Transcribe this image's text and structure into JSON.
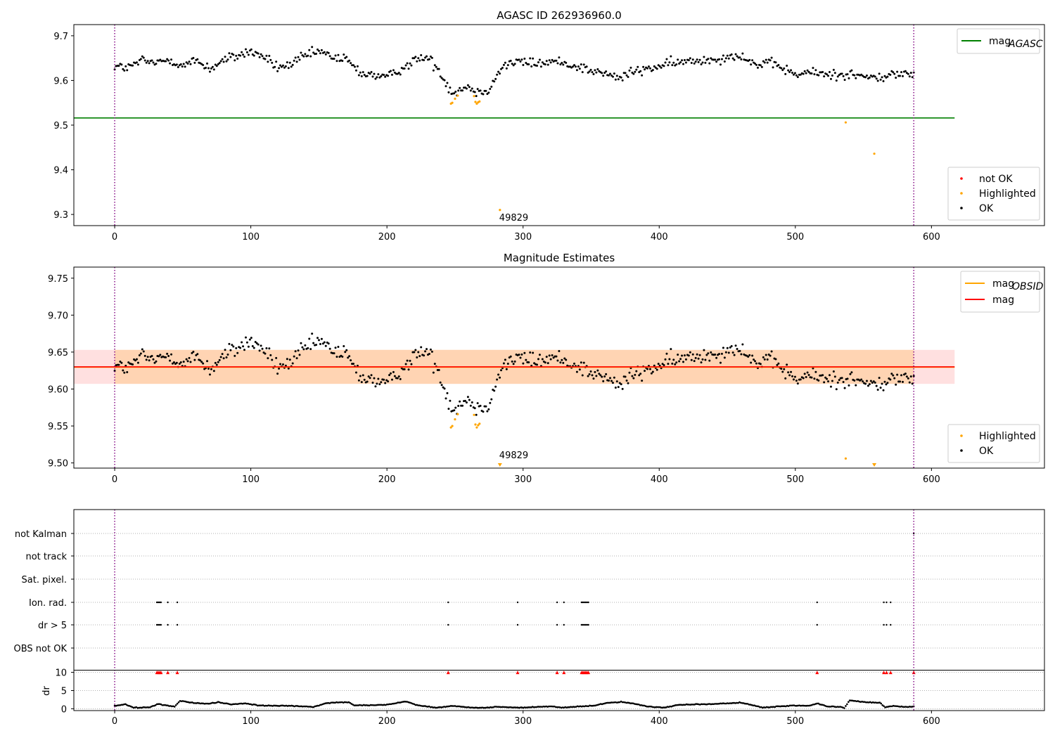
{
  "chart_data": [
    {
      "type": "scatter",
      "title": "AGASC ID 262936960.0",
      "xlim": [
        -30,
        683
      ],
      "ylim": [
        9.275,
        9.725
      ],
      "x_ticks": [
        0,
        100,
        200,
        300,
        400,
        500,
        600
      ],
      "y_ticks": [
        9.3,
        9.4,
        9.5,
        9.6,
        9.7
      ],
      "y_tick_labels": [
        "9.3",
        "9.4",
        "9.5",
        "9.6",
        "9.7"
      ],
      "vlines": [
        0,
        587
      ],
      "hlines": [
        {
          "name": "mag_AGASC",
          "y": 9.516,
          "x_range": [
            -30,
            617
          ],
          "color": "#008000"
        }
      ],
      "legend_lines": [
        {
          "label": "mag",
          "sub": "AGASC",
          "color": "#008000"
        }
      ],
      "legend_points": [
        {
          "label": "not OK",
          "color": "#ff0000"
        },
        {
          "label": "Highlighted",
          "color": "#ffa500"
        },
        {
          "label": "OK",
          "color": "#000000"
        }
      ],
      "annotation": {
        "text": "49829",
        "x": 283,
        "y": 9.292
      },
      "series": [
        {
          "name": "OK",
          "color": "#000000",
          "trend": [
            [
              0,
              9.632
            ],
            [
              10,
              9.628
            ],
            [
              20,
              9.645
            ],
            [
              30,
              9.638
            ],
            [
              40,
              9.648
            ],
            [
              50,
              9.632
            ],
            [
              60,
              9.645
            ],
            [
              70,
              9.626
            ],
            [
              80,
              9.645
            ],
            [
              90,
              9.655
            ],
            [
              100,
              9.665
            ],
            [
              110,
              9.652
            ],
            [
              120,
              9.628
            ],
            [
              130,
              9.636
            ],
            [
              140,
              9.655
            ],
            [
              150,
              9.665
            ],
            [
              160,
              9.652
            ],
            [
              170,
              9.647
            ],
            [
              180,
              9.618
            ],
            [
              190,
              9.612
            ],
            [
              200,
              9.606
            ],
            [
              210,
              9.625
            ],
            [
              220,
              9.645
            ],
            [
              230,
              9.652
            ],
            [
              240,
              9.615
            ],
            [
              245,
              9.585
            ],
            [
              250,
              9.572
            ],
            [
              258,
              9.588
            ],
            [
              268,
              9.572
            ],
            [
              275,
              9.582
            ],
            [
              285,
              9.632
            ],
            [
              295,
              9.642
            ],
            [
              310,
              9.638
            ],
            [
              325,
              9.642
            ],
            [
              340,
              9.632
            ],
            [
              350,
              9.622
            ],
            [
              360,
              9.615
            ],
            [
              370,
              9.605
            ],
            [
              380,
              9.618
            ],
            [
              390,
              9.625
            ],
            [
              400,
              9.632
            ],
            [
              410,
              9.638
            ],
            [
              420,
              9.642
            ],
            [
              430,
              9.645
            ],
            [
              440,
              9.648
            ],
            [
              450,
              9.652
            ],
            [
              460,
              9.658
            ],
            [
              470,
              9.635
            ],
            [
              480,
              9.638
            ],
            [
              490,
              9.63
            ],
            [
              500,
              9.612
            ],
            [
              510,
              9.618
            ],
            [
              520,
              9.615
            ],
            [
              530,
              9.612
            ],
            [
              540,
              9.615
            ],
            [
              550,
              9.608
            ],
            [
              560,
              9.605
            ],
            [
              570,
              9.612
            ],
            [
              580,
              9.615
            ],
            [
              587,
              9.615
            ]
          ],
          "count": 580,
          "noise": 0.022
        },
        {
          "name": "Highlighted",
          "color": "#ffa500",
          "points": [
            [
              247,
              9.548
            ],
            [
              248,
              9.55
            ],
            [
              250,
              9.559
            ],
            [
              252,
              9.566
            ],
            [
              264,
              9.565
            ],
            [
              265,
              9.552
            ],
            [
              266,
              9.548
            ],
            [
              267,
              9.551
            ],
            [
              268,
              9.553
            ],
            [
              283,
              9.31
            ],
            [
              537,
              9.506
            ],
            [
              558,
              9.436
            ]
          ]
        }
      ]
    },
    {
      "type": "scatter",
      "title": "Magnitude Estimates",
      "xlim": [
        -30,
        683
      ],
      "ylim": [
        9.493,
        9.765
      ],
      "x_ticks": [
        0,
        100,
        200,
        300,
        400,
        500,
        600
      ],
      "y_ticks": [
        9.5,
        9.55,
        9.6,
        9.65,
        9.7,
        9.75
      ],
      "y_tick_labels": [
        "9.50",
        "9.55",
        "9.60",
        "9.65",
        "9.70",
        "9.75"
      ],
      "vlines": [
        0,
        587
      ],
      "hlines": [
        {
          "name": "mag_OBSID",
          "y": 9.6295,
          "x_range": [
            -30,
            617
          ],
          "color": "#ffa500"
        },
        {
          "name": "mag",
          "y": 9.63,
          "x_range": [
            -30,
            617
          ],
          "color": "#ff0000"
        }
      ],
      "bands": [
        {
          "y0": 9.607,
          "y1": 9.653,
          "x_range": [
            -30,
            617
          ],
          "color": "#ff0000",
          "opacity": 0.12
        },
        {
          "y0": 9.607,
          "y1": 9.653,
          "x_range": [
            0,
            587
          ],
          "color": "#ffa500",
          "opacity": 0.2
        }
      ],
      "legend_lines": [
        {
          "label": "mag",
          "sub": "OBSID",
          "color": "#ffa500"
        },
        {
          "label": "mag",
          "sub": "",
          "color": "#ff0000"
        }
      ],
      "legend_points": [
        {
          "label": "Highlighted",
          "color": "#ffa500"
        },
        {
          "label": "OK",
          "color": "#000000"
        }
      ],
      "annotation": {
        "text": "49829",
        "x": 283,
        "y": 9.51
      },
      "series": [
        {
          "name": "OK",
          "color": "#000000",
          "same_as_panel": 0
        },
        {
          "name": "Highlighted",
          "color": "#ffa500",
          "points": [
            [
              247,
              9.548
            ],
            [
              248,
              9.55
            ],
            [
              250,
              9.559
            ],
            [
              252,
              9.566
            ],
            [
              264,
              9.565
            ],
            [
              265,
              9.552
            ],
            [
              266,
              9.548
            ],
            [
              267,
              9.551
            ],
            [
              268,
              9.553
            ],
            [
              537,
              9.506
            ]
          ],
          "offscale_markers": [
            [
              283,
              9.5
            ],
            [
              558,
              9.5
            ]
          ]
        }
      ]
    },
    {
      "type": "scatter",
      "title": "",
      "xlim": [
        -30,
        683
      ],
      "x_ticks": [
        0,
        100,
        200,
        300,
        400,
        500,
        600
      ],
      "vlines": [
        0,
        587
      ],
      "flag_rows": [
        "not Kalman",
        "not track",
        "Sat. pixel.",
        "Ion. rad.",
        "dr > 5",
        "OBS not OK"
      ],
      "flag_points": {
        "Ion. rad.": [
          31,
          32,
          33,
          34,
          39,
          46,
          245,
          296,
          325,
          330,
          343,
          344,
          345,
          346,
          347,
          348,
          516,
          565,
          567,
          570
        ],
        "dr > 5": [
          31,
          32,
          33,
          34,
          39,
          46,
          245,
          296,
          325,
          330,
          343,
          344,
          345,
          346,
          347,
          348,
          516,
          565,
          567,
          570
        ],
        "not Kalman": [
          587
        ]
      },
      "dr_axis": {
        "ylabel": "dr",
        "ylim": [
          -0.5,
          10.5
        ],
        "y_ticks": [
          0,
          5,
          10
        ],
        "y_tick_labels": [
          "0",
          "5",
          "10"
        ]
      },
      "dr_outliers_x": [
        31,
        32,
        33,
        34,
        39,
        46,
        245,
        296,
        325,
        330,
        343,
        344,
        345,
        346,
        347,
        348,
        516,
        565,
        567,
        570,
        587
      ],
      "dr_outlier_color": "#ff0000",
      "dr_series": {
        "name": "dr",
        "color": "#000000",
        "trend": [
          [
            0,
            0.8
          ],
          [
            8,
            1.2
          ],
          [
            14,
            0.3
          ],
          [
            26,
            0.4
          ],
          [
            32,
            1.3
          ],
          [
            44,
            0.6
          ],
          [
            48,
            2.2
          ],
          [
            58,
            1.6
          ],
          [
            70,
            1.4
          ],
          [
            76,
            1.8
          ],
          [
            86,
            1.2
          ],
          [
            96,
            1.5
          ],
          [
            106,
            0.9
          ],
          [
            130,
            0.8
          ],
          [
            146,
            0.5
          ],
          [
            156,
            1.6
          ],
          [
            172,
            1.8
          ],
          [
            176,
            0.9
          ],
          [
            200,
            1.1
          ],
          [
            208,
            1.7
          ],
          [
            214,
            2.0
          ],
          [
            222,
            1.0
          ],
          [
            236,
            0.3
          ],
          [
            248,
            0.8
          ],
          [
            262,
            0.3
          ],
          [
            272,
            0.3
          ],
          [
            280,
            0.5
          ],
          [
            298,
            0.3
          ],
          [
            310,
            0.5
          ],
          [
            320,
            0.7
          ],
          [
            328,
            0.3
          ],
          [
            342,
            0.6
          ],
          [
            352,
            0.9
          ],
          [
            362,
            1.6
          ],
          [
            372,
            1.9
          ],
          [
            382,
            1.4
          ],
          [
            392,
            0.6
          ],
          [
            404,
            0.3
          ],
          [
            414,
            1.1
          ],
          [
            440,
            1.3
          ],
          [
            460,
            1.7
          ],
          [
            466,
            1.2
          ],
          [
            476,
            0.3
          ],
          [
            486,
            0.6
          ],
          [
            500,
            0.9
          ],
          [
            510,
            0.8
          ],
          [
            516,
            1.5
          ],
          [
            524,
            0.6
          ],
          [
            534,
            0.5
          ],
          [
            536,
            0.2
          ],
          [
            540,
            2.3
          ],
          [
            552,
            1.8
          ],
          [
            562,
            1.6
          ],
          [
            566,
            0.4
          ],
          [
            572,
            0.8
          ],
          [
            580,
            0.5
          ],
          [
            587,
            0.6
          ]
        ],
        "count": 588,
        "noise": 0.25
      }
    }
  ]
}
